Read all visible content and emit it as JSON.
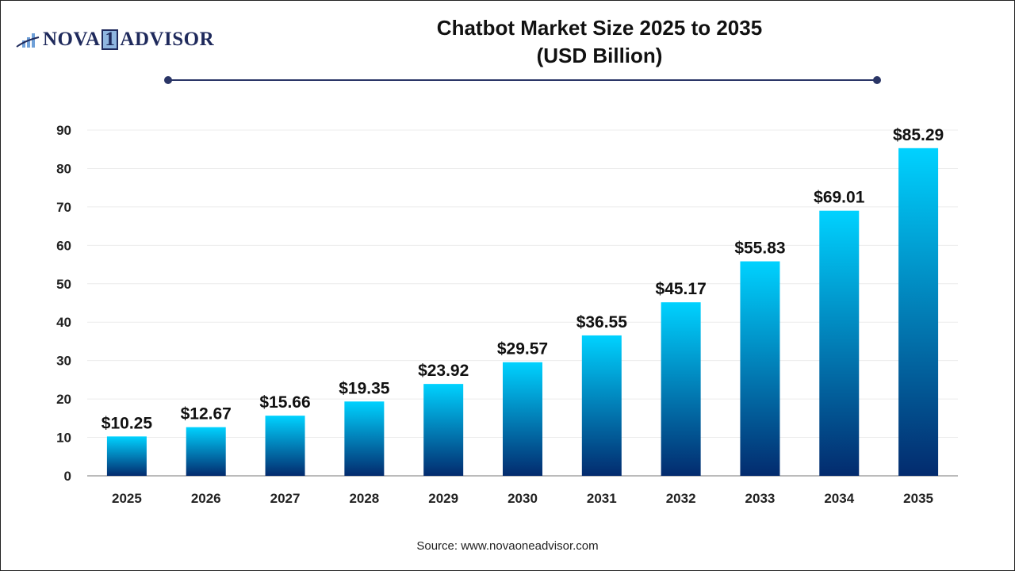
{
  "logo": {
    "text_before": "NOVA",
    "text_one": "1",
    "text_after": "ADVISOR"
  },
  "source": "Source: www.novaoneadvisor.com",
  "colors": {
    "bar_top": "#00d2ff",
    "bar_bottom": "#032b6e",
    "rule": "#2a3566"
  },
  "chart_data": {
    "type": "bar",
    "title": "Chatbot Market Size 2025 to 2035",
    "subtitle": "(USD Billion)",
    "categories": [
      "2025",
      "2026",
      "2027",
      "2028",
      "2029",
      "2030",
      "2031",
      "2032",
      "2033",
      "2034",
      "2035"
    ],
    "values": [
      10.25,
      12.67,
      15.66,
      19.35,
      23.92,
      29.57,
      36.55,
      45.17,
      55.83,
      69.01,
      85.29
    ],
    "data_labels": [
      "$10.25",
      "$12.67",
      "$15.66",
      "$19.35",
      "$23.92",
      "$29.57",
      "$36.55",
      "$45.17",
      "$55.83",
      "$69.01",
      "$85.29"
    ],
    "yticks": [
      0,
      10,
      20,
      30,
      40,
      50,
      60,
      70,
      80,
      90
    ],
    "ylim": [
      0,
      90
    ],
    "grid": true,
    "xlabel": "",
    "ylabel": ""
  }
}
